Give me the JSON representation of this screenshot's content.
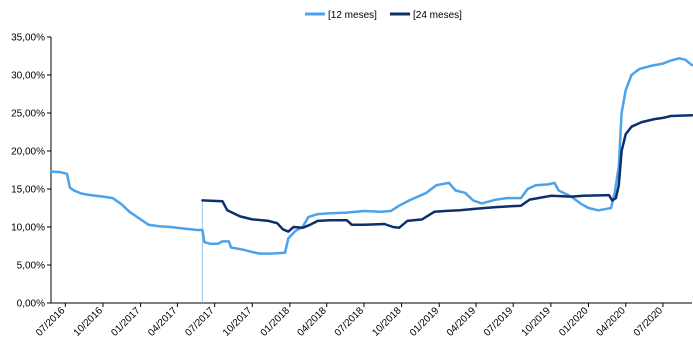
{
  "chart_data": {
    "type": "line",
    "title": "",
    "xlabel": "",
    "ylabel": "",
    "ylim": [
      0,
      35
    ],
    "y_tick_format": "percent-comma-2",
    "y_ticks": [
      "0,00%",
      "5,00%",
      "10,00%",
      "15,00%",
      "20,00%",
      "25,00%",
      "30,00%",
      "35,00%"
    ],
    "x_range": [
      "2016-05-27",
      "2020-09-10"
    ],
    "x_ticks": [
      {
        "date": "2016-07-01",
        "label": "07/2016"
      },
      {
        "date": "2016-10-01",
        "label": "10/2016"
      },
      {
        "date": "2017-01-01",
        "label": "01/2017"
      },
      {
        "date": "2017-04-01",
        "label": "04/2017"
      },
      {
        "date": "2017-07-01",
        "label": "07/2017"
      },
      {
        "date": "2017-10-01",
        "label": "10/2017"
      },
      {
        "date": "2018-01-01",
        "label": "01/2018"
      },
      {
        "date": "2018-04-01",
        "label": "04/2018"
      },
      {
        "date": "2018-07-01",
        "label": "07/2018"
      },
      {
        "date": "2018-10-01",
        "label": "10/2018"
      },
      {
        "date": "2019-01-01",
        "label": "01/2019"
      },
      {
        "date": "2019-04-01",
        "label": "04/2019"
      },
      {
        "date": "2019-07-01",
        "label": "07/2019"
      },
      {
        "date": "2019-10-01",
        "label": "10/2019"
      },
      {
        "date": "2020-01-01",
        "label": "01/2020"
      },
      {
        "date": "2020-04-01",
        "label": "04/2020"
      },
      {
        "date": "2020-07-01",
        "label": "07/2020"
      }
    ],
    "legend_position": "top-center",
    "grid": false,
    "series": [
      {
        "name": "[12 meses]",
        "color": "#4da3ea",
        "points": [
          [
            "2016-05-27",
            17.3
          ],
          [
            "2016-06-20",
            17.2
          ],
          [
            "2016-07-05",
            17.0
          ],
          [
            "2016-07-12",
            15.2
          ],
          [
            "2016-07-22",
            14.8
          ],
          [
            "2016-08-10",
            14.4
          ],
          [
            "2016-09-01",
            14.2
          ],
          [
            "2016-10-01",
            14.0
          ],
          [
            "2016-10-25",
            13.8
          ],
          [
            "2016-11-15",
            13.0
          ],
          [
            "2016-12-05",
            12.0
          ],
          [
            "2017-01-01",
            11.0
          ],
          [
            "2017-01-20",
            10.3
          ],
          [
            "2017-02-15",
            10.1
          ],
          [
            "2017-03-15",
            10.0
          ],
          [
            "2017-04-15",
            9.8
          ],
          [
            "2017-05-20",
            9.6
          ],
          [
            "2017-06-01",
            9.6
          ],
          [
            "2017-06-06",
            8.0
          ],
          [
            "2017-06-20",
            7.8
          ],
          [
            "2017-07-10",
            7.8
          ],
          [
            "2017-07-20",
            8.1
          ],
          [
            "2017-08-05",
            8.1
          ],
          [
            "2017-08-10",
            7.3
          ],
          [
            "2017-09-10",
            7.0
          ],
          [
            "2017-10-01",
            6.7
          ],
          [
            "2017-10-20",
            6.5
          ],
          [
            "2017-11-15",
            6.5
          ],
          [
            "2017-12-20",
            6.6
          ],
          [
            "2017-12-28",
            8.5
          ],
          [
            "2018-01-15",
            9.5
          ],
          [
            "2018-02-01",
            10.0
          ],
          [
            "2018-02-15",
            11.3
          ],
          [
            "2018-03-10",
            11.7
          ],
          [
            "2018-04-10",
            11.8
          ],
          [
            "2018-05-20",
            11.9
          ],
          [
            "2018-07-01",
            12.1
          ],
          [
            "2018-08-10",
            12.0
          ],
          [
            "2018-09-05",
            12.1
          ],
          [
            "2018-09-25",
            12.8
          ],
          [
            "2018-10-20",
            13.5
          ],
          [
            "2018-12-01",
            14.5
          ],
          [
            "2018-12-25",
            15.5
          ],
          [
            "2019-01-25",
            15.8
          ],
          [
            "2019-02-10",
            14.8
          ],
          [
            "2019-03-05",
            14.5
          ],
          [
            "2019-03-25",
            13.5
          ],
          [
            "2019-04-15",
            13.1
          ],
          [
            "2019-05-20",
            13.6
          ],
          [
            "2019-06-15",
            13.8
          ],
          [
            "2019-07-20",
            13.8
          ],
          [
            "2019-08-05",
            15.0
          ],
          [
            "2019-08-25",
            15.5
          ],
          [
            "2019-09-25",
            15.6
          ],
          [
            "2019-10-10",
            15.8
          ],
          [
            "2019-10-20",
            14.8
          ],
          [
            "2019-11-20",
            14.0
          ],
          [
            "2019-12-15",
            13.0
          ],
          [
            "2020-01-01",
            12.5
          ],
          [
            "2020-01-25",
            12.2
          ],
          [
            "2020-02-15",
            12.4
          ],
          [
            "2020-02-25",
            12.5
          ],
          [
            "2020-03-05",
            14.5
          ],
          [
            "2020-03-15",
            18.0
          ],
          [
            "2020-03-22",
            25.0
          ],
          [
            "2020-04-01",
            28.0
          ],
          [
            "2020-04-15",
            30.0
          ],
          [
            "2020-05-05",
            30.8
          ],
          [
            "2020-06-01",
            31.2
          ],
          [
            "2020-07-01",
            31.5
          ],
          [
            "2020-07-20",
            31.9
          ],
          [
            "2020-08-10",
            32.2
          ],
          [
            "2020-08-25",
            32.0
          ],
          [
            "2020-09-05",
            31.5
          ],
          [
            "2020-09-10",
            31.3
          ]
        ]
      },
      {
        "name": "[24 meses]",
        "color": "#0f2f6a",
        "points": [
          [
            "2017-06-01",
            13.5
          ],
          [
            "2017-07-20",
            13.4
          ],
          [
            "2017-08-01",
            12.2
          ],
          [
            "2017-09-01",
            11.4
          ],
          [
            "2017-10-01",
            11.0
          ],
          [
            "2017-11-10",
            10.8
          ],
          [
            "2017-12-01",
            10.5
          ],
          [
            "2017-12-15",
            9.7
          ],
          [
            "2017-12-28",
            9.4
          ],
          [
            "2018-01-10",
            10.0
          ],
          [
            "2018-02-01",
            9.9
          ],
          [
            "2018-02-20",
            10.3
          ],
          [
            "2018-03-10",
            10.8
          ],
          [
            "2018-04-10",
            10.9
          ],
          [
            "2018-05-20",
            10.9
          ],
          [
            "2018-06-01",
            10.3
          ],
          [
            "2018-07-01",
            10.3
          ],
          [
            "2018-08-20",
            10.4
          ],
          [
            "2018-09-10",
            10.0
          ],
          [
            "2018-09-25",
            9.9
          ],
          [
            "2018-10-15",
            10.8
          ],
          [
            "2018-11-20",
            11.0
          ],
          [
            "2018-12-20",
            12.0
          ],
          [
            "2019-01-15",
            12.1
          ],
          [
            "2019-02-20",
            12.2
          ],
          [
            "2019-04-01",
            12.4
          ],
          [
            "2019-05-15",
            12.6
          ],
          [
            "2019-07-20",
            12.8
          ],
          [
            "2019-08-10",
            13.6
          ],
          [
            "2019-09-10",
            13.9
          ],
          [
            "2019-10-01",
            14.1
          ],
          [
            "2019-11-20",
            14.0
          ],
          [
            "2019-12-20",
            14.1
          ],
          [
            "2020-02-20",
            14.2
          ],
          [
            "2020-02-28",
            13.5
          ],
          [
            "2020-03-08",
            13.8
          ],
          [
            "2020-03-15",
            15.5
          ],
          [
            "2020-03-22",
            20.0
          ],
          [
            "2020-04-01",
            22.2
          ],
          [
            "2020-04-15",
            23.2
          ],
          [
            "2020-05-10",
            23.8
          ],
          [
            "2020-06-10",
            24.2
          ],
          [
            "2020-07-05",
            24.4
          ],
          [
            "2020-07-20",
            24.6
          ],
          [
            "2020-09-10",
            24.7
          ]
        ]
      }
    ]
  }
}
